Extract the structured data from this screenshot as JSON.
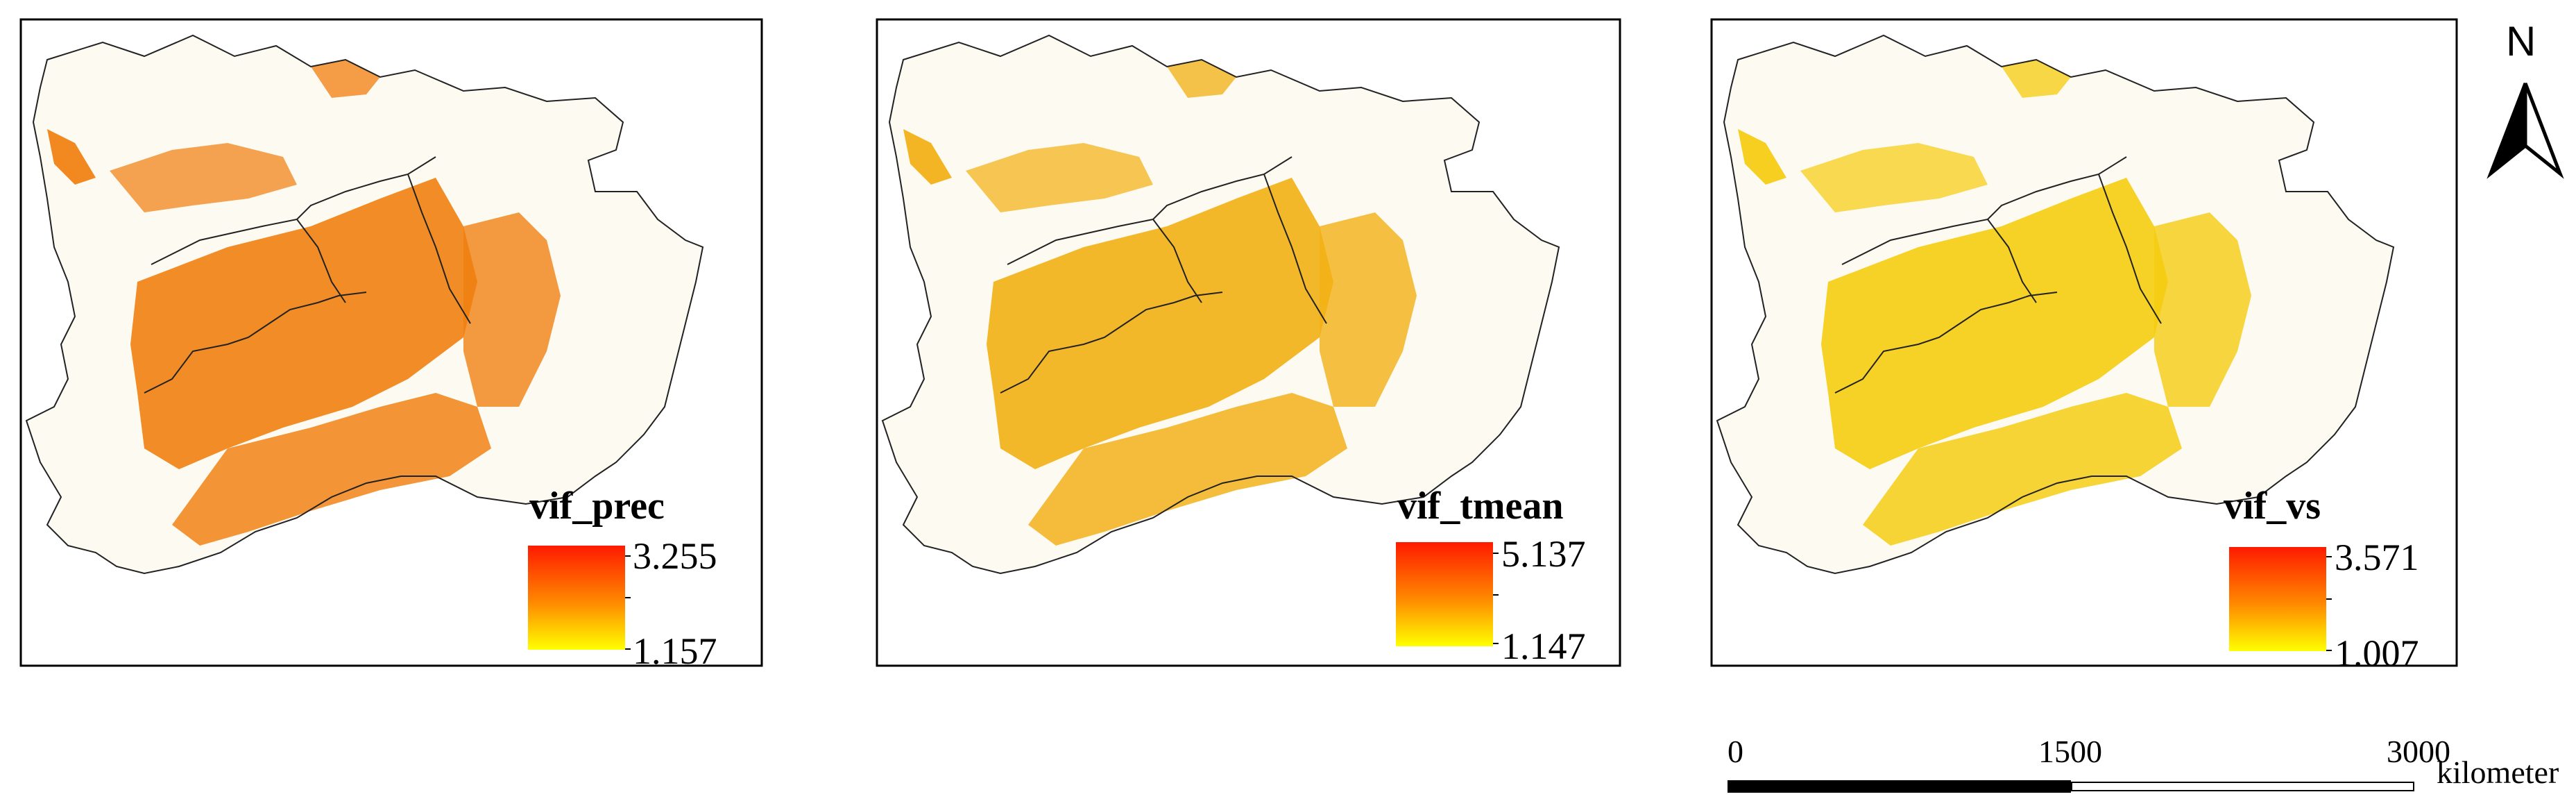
{
  "panels": [
    {
      "id": "prec",
      "title": "vif_prec",
      "max": "3.255",
      "min": "1.157",
      "color_max": "#ff1a00",
      "color_min": "#ffff00",
      "dominant": "#f08010"
    },
    {
      "id": "tmean",
      "title": "vif_tmean",
      "max": "5.137",
      "min": "1.147",
      "color_max": "#ff1a00",
      "color_min": "#ffff00",
      "dominant": "#f2b014"
    },
    {
      "id": "vs",
      "title": "vif_vs",
      "max": "3.571",
      "min": "1.007",
      "color_max": "#ff1a00",
      "color_min": "#ffff00",
      "dominant": "#f5cc10"
    }
  ],
  "north_arrow": {
    "label": "N",
    "icon": "north-arrow-icon"
  },
  "scale_bar": {
    "ticks": [
      "0",
      "1500",
      "3000"
    ],
    "unit": "kilometer"
  }
}
